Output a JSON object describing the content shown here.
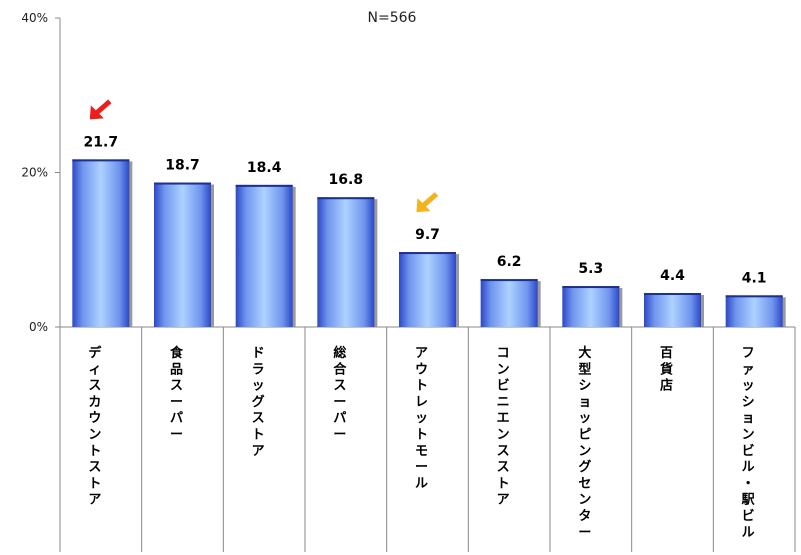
{
  "note": "N=566",
  "chart_data": {
    "type": "bar",
    "categories": [
      "ディスカウントストア",
      "食品スーパー",
      "ドラッグストア",
      "総合スーパー",
      "アウトレットモール",
      "コンビニエンスストア",
      "大型ショッピングセンター",
      "百貨店",
      "ファッションビル・駅ビル"
    ],
    "values": [
      21.7,
      18.7,
      18.4,
      16.8,
      9.7,
      6.2,
      5.3,
      4.4,
      4.1
    ],
    "value_labels": [
      "21.7",
      "18.7",
      "18.4",
      "16.8",
      "9.7",
      "6.2",
      "5.3",
      "4.4",
      "4.1"
    ],
    "ylim": [
      0,
      40
    ],
    "yticks": [
      0,
      20,
      40
    ],
    "ytick_labels": [
      "0%",
      "20%",
      "40%"
    ],
    "xlabel": "",
    "ylabel": "",
    "grid": false,
    "highlights": [
      {
        "category_index": 0,
        "color": "#ee1c1c",
        "icon": "arrow-icon"
      },
      {
        "category_index": 4,
        "color": "#f5b21a",
        "icon": "arrow-icon"
      }
    ],
    "colors": {
      "bar_light": "#aed2ff",
      "bar_dark": "#2c47c8",
      "axis": "#888888"
    }
  }
}
